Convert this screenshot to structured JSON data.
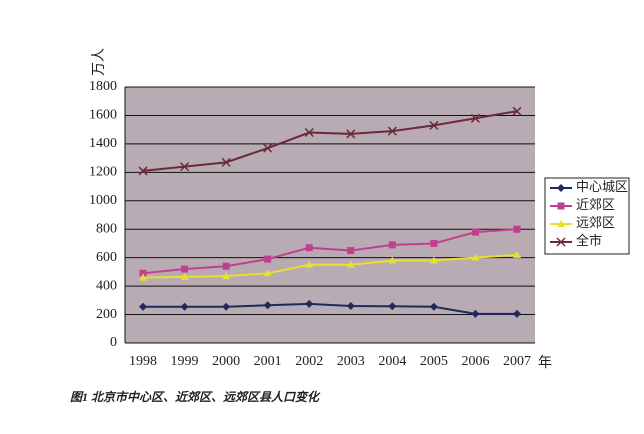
{
  "chart_data": {
    "type": "line",
    "y_label": "万人",
    "x_label": "年",
    "caption": "图1 北京市中心区、近郊区、远郊区县人口变化",
    "categories": [
      "1998",
      "1999",
      "2000",
      "2001",
      "2002",
      "2003",
      "2004",
      "2005",
      "2006",
      "2007"
    ],
    "series": [
      {
        "name": "中心城区",
        "color": "#1f2a5a",
        "marker": "diamond",
        "values": [
          255,
          255,
          255,
          265,
          275,
          260,
          258,
          255,
          205,
          205
        ]
      },
      {
        "name": "近郊区",
        "color": "#c0408f",
        "marker": "square",
        "values": [
          490,
          520,
          540,
          590,
          670,
          650,
          690,
          700,
          780,
          800
        ]
      },
      {
        "name": "远郊区",
        "color": "#e8e030",
        "marker": "triangle",
        "values": [
          460,
          465,
          470,
          490,
          550,
          550,
          580,
          580,
          600,
          620
        ]
      },
      {
        "name": "全市",
        "color": "#6a2a3a",
        "marker": "cross",
        "values": [
          1210,
          1240,
          1270,
          1370,
          1480,
          1470,
          1490,
          1530,
          1580,
          1630
        ]
      }
    ],
    "ylim": [
      0,
      1800
    ],
    "yticks": [
      0,
      200,
      400,
      600,
      800,
      1000,
      1200,
      1400,
      1600,
      1800
    ],
    "grid": true,
    "legend": "right"
  }
}
